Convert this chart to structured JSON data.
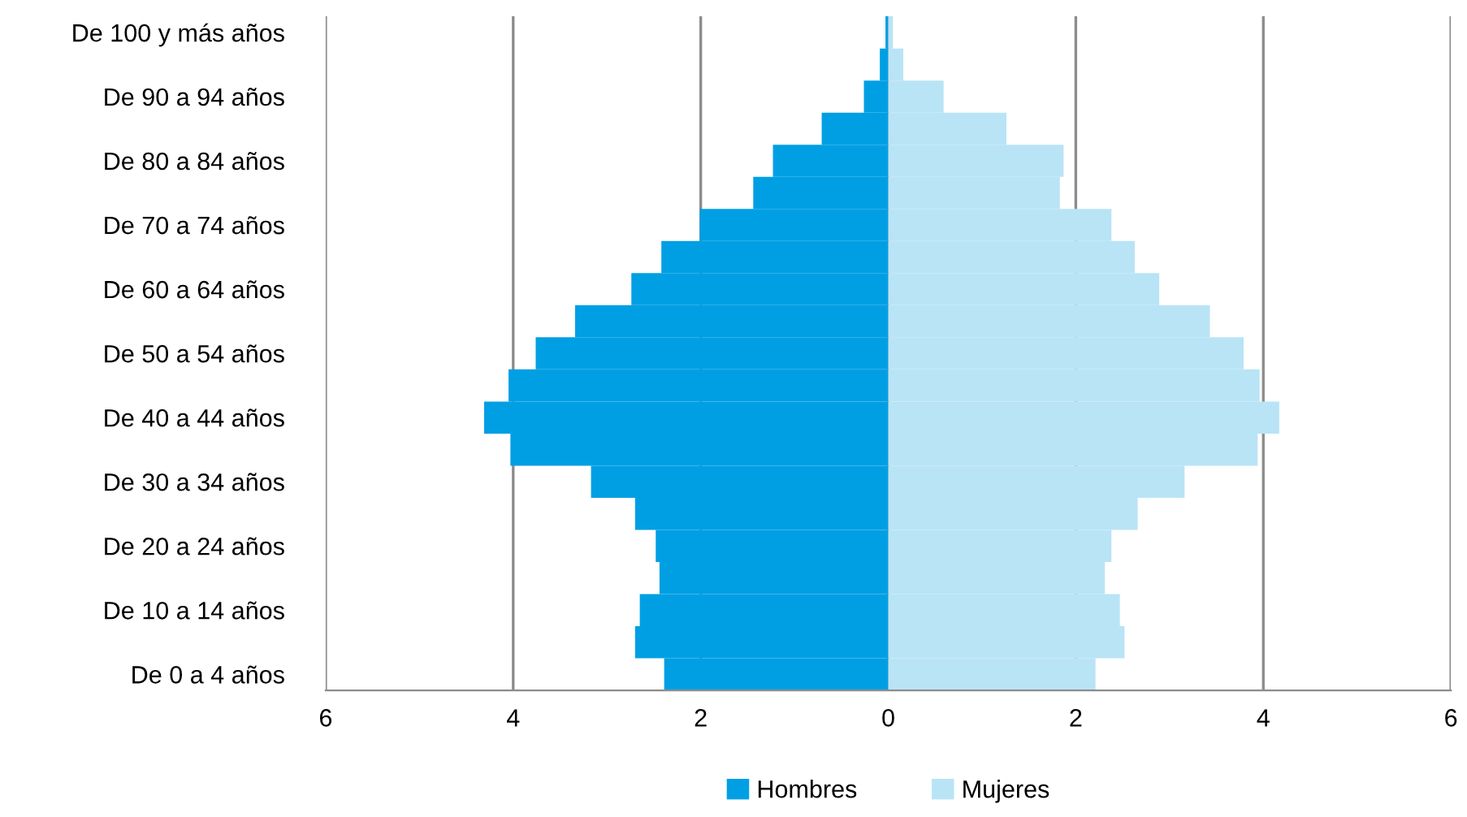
{
  "chart_data": {
    "type": "bar",
    "orientation": "horizontal",
    "stacked": true,
    "categories": [
      "De 100 y más años",
      null,
      "De 90 a 94 años",
      null,
      "De 80 a 84 años",
      null,
      "De 70 a 74 años",
      null,
      "De 60 a 64 años",
      null,
      "De 50 a 54 años",
      null,
      "De 40 a 44 años",
      null,
      "De 30 a 34 años",
      null,
      "De 20 a 24 años",
      null,
      "De 10 a 14 años",
      null,
      "De 0 a 4 años"
    ],
    "series": [
      {
        "name": "Hombres",
        "color": "#009fe3",
        "values": [
          -0.03,
          -0.09,
          -0.26,
          -0.71,
          -1.23,
          -1.44,
          -2.01,
          -2.42,
          -2.74,
          -3.34,
          -3.76,
          -4.05,
          -4.31,
          -4.03,
          -3.17,
          -2.7,
          -2.48,
          -2.44,
          -2.65,
          -2.7,
          -2.39
        ]
      },
      {
        "name": "Mujeres",
        "color": "#b9e4f6",
        "values": [
          0.05,
          0.16,
          0.59,
          1.26,
          1.87,
          1.83,
          2.38,
          2.63,
          2.89,
          3.43,
          3.79,
          3.96,
          4.17,
          3.94,
          3.16,
          2.66,
          2.38,
          2.31,
          2.47,
          2.52,
          2.21
        ]
      }
    ],
    "xlim": [
      -6,
      6
    ],
    "xticks": [
      {
        "value": -6,
        "label": "6"
      },
      {
        "value": -4,
        "label": "4"
      },
      {
        "value": -2,
        "label": "2"
      },
      0,
      2,
      4,
      6
    ],
    "grid": "x",
    "legend": "bottom"
  }
}
